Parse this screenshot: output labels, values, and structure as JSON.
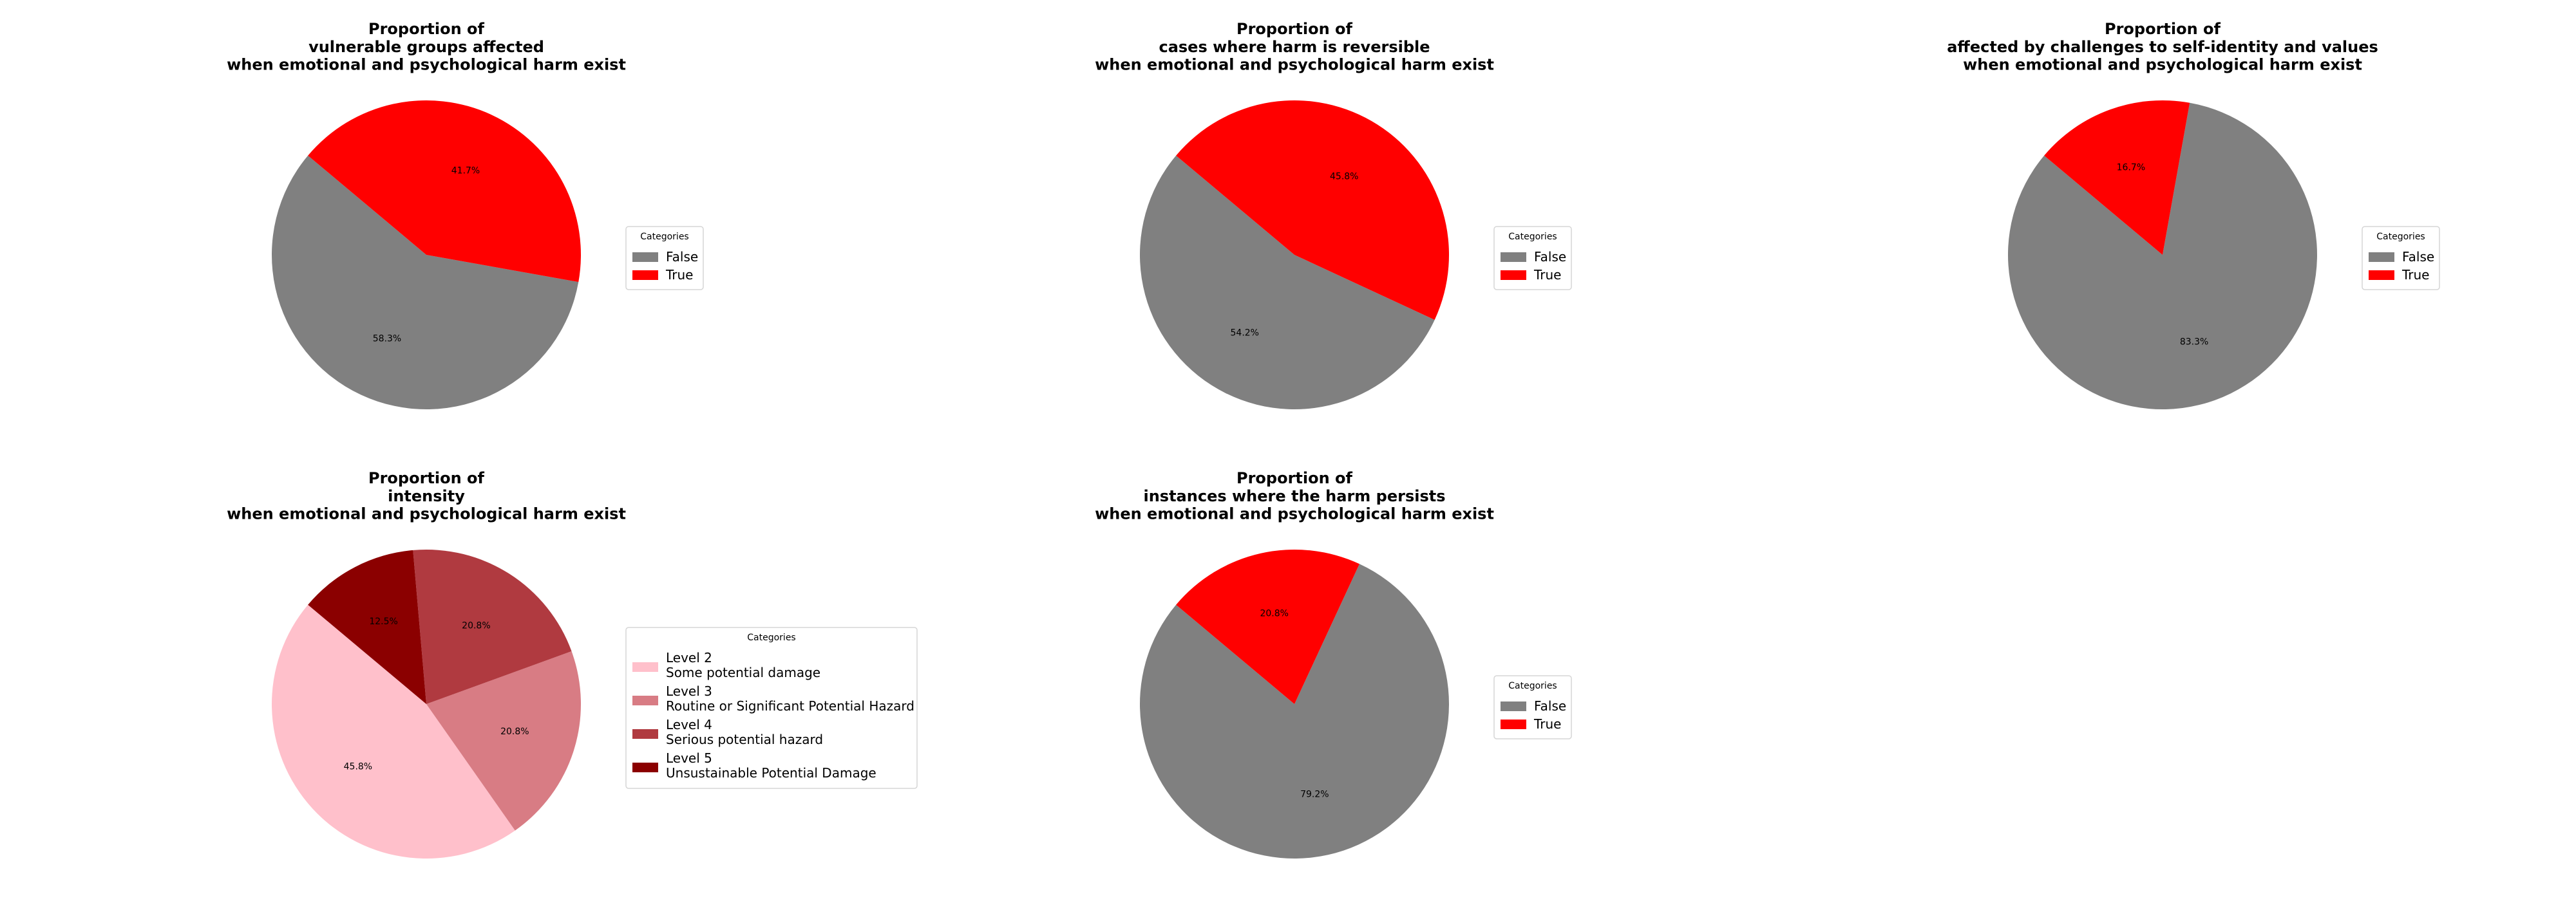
{
  "chart_data": [
    {
      "type": "pie",
      "title": "Proportion of\nvulnerable groups affected\nwhen emotional and psychological harm exist",
      "categories": [
        "False",
        "True"
      ],
      "values": [
        58.3,
        41.7
      ],
      "labels": [
        "58.3%",
        "41.7%"
      ],
      "colors": [
        "#808080",
        "#ff0000"
      ],
      "legend": {
        "title": "Categories",
        "entries": [
          "False",
          "True"
        ],
        "placement": "right"
      }
    },
    {
      "type": "pie",
      "title": "Proportion of\ncases where harm is reversible\nwhen emotional and psychological harm exist",
      "categories": [
        "False",
        "True"
      ],
      "values": [
        54.2,
        45.8
      ],
      "labels": [
        "54.2%",
        "45.8%"
      ],
      "colors": [
        "#808080",
        "#ff0000"
      ],
      "legend": {
        "title": "Categories",
        "entries": [
          "False",
          "True"
        ],
        "placement": "right"
      }
    },
    {
      "type": "pie",
      "title": "Proportion of\naffected by challenges to self-identity and values\nwhen emotional and psychological harm exist",
      "categories": [
        "False",
        "True"
      ],
      "values": [
        83.3,
        16.7
      ],
      "labels": [
        "83.3%",
        "16.7%"
      ],
      "colors": [
        "#808080",
        "#ff0000"
      ],
      "legend": {
        "title": "Categories",
        "entries": [
          "False",
          "True"
        ],
        "placement": "right"
      }
    },
    {
      "type": "pie",
      "title": "Proportion of\nintensity\nwhen emotional and psychological harm exist",
      "categories": [
        "Level 2\nSome potential damage",
        "Level 3\nRoutine or Significant Potential Hazard",
        "Level 4\nSerious potential hazard",
        "Level 5\nUnsustainable Potential Damage"
      ],
      "values": [
        45.8,
        20.8,
        20.8,
        12.5
      ],
      "labels": [
        "45.8%",
        "20.8%",
        "20.8%",
        "12.5%"
      ],
      "colors": [
        "#ffc0cb",
        "#d87c84",
        "#b03a40",
        "#8b0000"
      ],
      "legend": {
        "title": "Categories",
        "entries": [
          "Level 2\nSome potential damage",
          "Level 3\nRoutine or Significant Potential Hazard",
          "Level 4\nSerious potential hazard",
          "Level 5\nUnsustainable Potential Damage"
        ],
        "placement": "right"
      }
    },
    {
      "type": "pie",
      "title": "Proportion of\ninstances where the harm persists\nwhen emotional and psychological harm exist",
      "categories": [
        "False",
        "True"
      ],
      "values": [
        79.2,
        20.8
      ],
      "labels": [
        "79.2%",
        "20.8%"
      ],
      "colors": [
        "#808080",
        "#ff0000"
      ],
      "legend": {
        "title": "Categories",
        "entries": [
          "False",
          "True"
        ],
        "placement": "right"
      }
    }
  ]
}
